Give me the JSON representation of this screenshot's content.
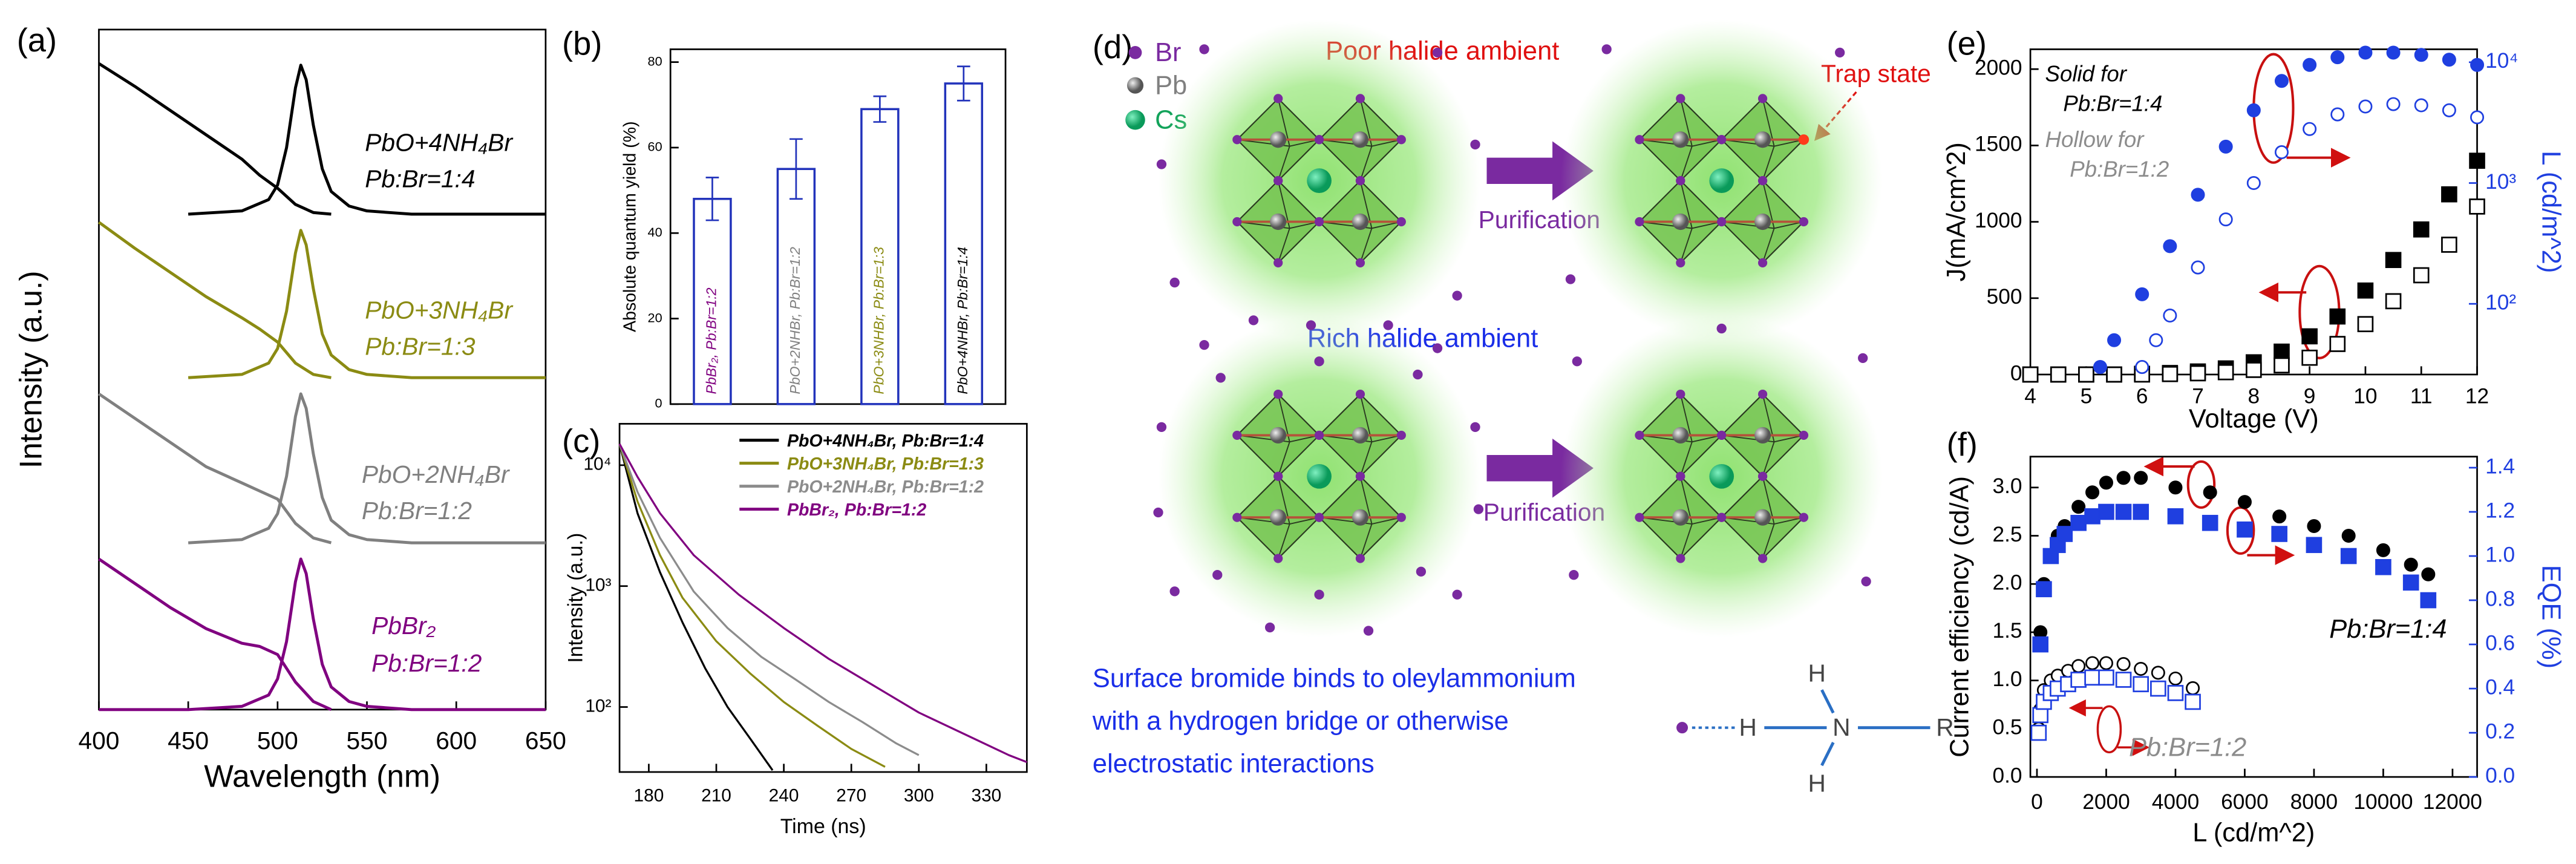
{
  "chart_data": [
    {
      "type": "line",
      "title": "(a)",
      "xlabel": "Wavelength (nm)",
      "ylabel": "Intensity (a.u.)",
      "xlim": [
        400,
        650
      ],
      "xticks": [
        400,
        450,
        500,
        550,
        600,
        650
      ],
      "ylim": [
        0,
        4.2
      ],
      "series": [
        {
          "color": "#000000",
          "x": [
            400,
            420,
            440,
            460,
            480,
            490,
            500,
            510,
            520,
            530
          ],
          "values": [
            3.99,
            3.85,
            3.7,
            3.55,
            3.4,
            3.3,
            3.22,
            3.12,
            3.07,
            3.06
          ]
        },
        {
          "color": "#000000",
          "x": [
            450,
            480,
            495,
            500,
            505,
            510,
            513,
            516,
            520,
            525,
            530,
            540,
            550,
            575,
            600,
            650
          ],
          "values": [
            3.06,
            3.08,
            3.15,
            3.24,
            3.47,
            3.84,
            3.98,
            3.89,
            3.61,
            3.34,
            3.2,
            3.11,
            3.08,
            3.06,
            3.06,
            3.06
          ]
        },
        {
          "color": "#8b8b13",
          "x": [
            400,
            420,
            440,
            460,
            480,
            490,
            500,
            510,
            520,
            530
          ],
          "values": [
            3.01,
            2.85,
            2.7,
            2.55,
            2.42,
            2.35,
            2.27,
            2.14,
            2.07,
            2.05
          ]
        },
        {
          "color": "#8b8b13",
          "x": [
            450,
            480,
            495,
            500,
            505,
            510,
            513,
            516,
            520,
            525,
            530,
            540,
            550,
            575,
            600,
            650
          ],
          "values": [
            2.05,
            2.07,
            2.14,
            2.23,
            2.46,
            2.82,
            2.96,
            2.87,
            2.6,
            2.32,
            2.19,
            2.1,
            2.07,
            2.05,
            2.05,
            2.05
          ]
        },
        {
          "color": "#808080",
          "x": [
            400,
            420,
            440,
            460,
            480,
            490,
            500,
            510,
            520,
            530
          ],
          "values": [
            1.95,
            1.8,
            1.65,
            1.5,
            1.4,
            1.35,
            1.3,
            1.15,
            1.06,
            1.03
          ]
        },
        {
          "color": "#808080",
          "x": [
            450,
            480,
            495,
            500,
            505,
            510,
            513,
            516,
            520,
            525,
            530,
            540,
            550,
            575,
            600,
            650
          ],
          "values": [
            1.03,
            1.05,
            1.12,
            1.21,
            1.44,
            1.81,
            1.95,
            1.86,
            1.58,
            1.31,
            1.17,
            1.08,
            1.05,
            1.03,
            1.03,
            1.03
          ]
        },
        {
          "color": "#800080",
          "x": [
            400,
            420,
            440,
            460,
            480,
            490,
            500,
            510,
            520,
            530
          ],
          "values": [
            0.93,
            0.78,
            0.63,
            0.5,
            0.41,
            0.39,
            0.34,
            0.17,
            0.05,
            0
          ]
        },
        {
          "color": "#800080",
          "x": [
            400,
            450,
            480,
            495,
            500,
            505,
            510,
            513,
            516,
            520,
            525,
            530,
            540,
            550,
            575,
            600,
            650
          ],
          "values": [
            0,
            0,
            0.02,
            0.09,
            0.19,
            0.42,
            0.79,
            0.93,
            0.84,
            0.56,
            0.28,
            0.14,
            0.05,
            0.02,
            0,
            0,
            0
          ]
        }
      ],
      "annotations": [
        {
          "text": "PbO+4NH₄Br",
          "color": "#000000"
        },
        {
          "text": "Pb:Br=1:4",
          "color": "#000000"
        },
        {
          "text": "PbO+3NH₄Br",
          "color": "#8b8b13"
        },
        {
          "text": "Pb:Br=1:3",
          "color": "#8b8b13"
        },
        {
          "text": "PbO+2NH₄Br",
          "color": "#808080"
        },
        {
          "text": "Pb:Br=1:2",
          "color": "#808080"
        },
        {
          "text": "PbBr₂",
          "color": "#800080"
        },
        {
          "text": "Pb:Br=1:2",
          "color": "#800080"
        }
      ]
    },
    {
      "type": "bar",
      "title": "(b)",
      "ylabel": "Absolute quantum yield (%)",
      "categories": [
        "PbBr₂, Pb:Br=1:2",
        "PbO+2NHBr, Pb:Br=1:2",
        "PbO+3NHBr, Pb:Br=1:3",
        "PbO+4NHBr, Pb:Br=1:4"
      ],
      "category_colors": [
        "#800080",
        "#808080",
        "#8b8b13",
        "#000000"
      ],
      "values": [
        48,
        55,
        69,
        75
      ],
      "errors": [
        5,
        7,
        3,
        4
      ],
      "color": "#ffffff",
      "edgecolor": "#2233bb",
      "ylim": [
        0,
        83
      ],
      "yticks": [
        0,
        20,
        40,
        60,
        80
      ]
    },
    {
      "type": "line",
      "title": "(c)",
      "xlabel": "Time (ns)",
      "ylabel": "Intensity (a.u.)",
      "xlim": [
        167,
        348
      ],
      "xticks": [
        180,
        210,
        240,
        270,
        300,
        330
      ],
      "ylog": true,
      "ylim": [
        29,
        22000
      ],
      "yticks": [
        {
          "value": 100,
          "label": "10²"
        },
        {
          "value": 1000,
          "label": "10³"
        },
        {
          "value": 10000,
          "label": "10⁴"
        }
      ],
      "legend": "upper right",
      "series": [
        {
          "name": "PbO+4NH₄Br, Pb:Br=1:4",
          "color": "#000000",
          "x": [
            167,
            175,
            185,
            195,
            205,
            215,
            225,
            235
          ],
          "values": [
            15000,
            4000,
            1300,
            500,
            210,
            100,
            55,
            30
          ]
        },
        {
          "name": "PbO+3NH₄Br, Pb:Br=1:3",
          "color": "#8b8b13",
          "x": [
            167,
            175,
            185,
            195,
            210,
            225,
            240,
            255,
            270,
            285
          ],
          "values": [
            15000,
            5000,
            1800,
            800,
            350,
            190,
            110,
            70,
            45,
            32
          ]
        },
        {
          "name": "PbO+2NH₄Br, Pb:Br=1:2",
          "color": "#8c8c8c",
          "x": [
            167,
            175,
            185,
            200,
            215,
            230,
            245,
            260,
            275,
            290,
            300
          ],
          "values": [
            15000,
            6000,
            2500,
            900,
            450,
            260,
            170,
            110,
            75,
            50,
            40
          ]
        },
        {
          "name": "PbBr₂, Pb:Br=1:2",
          "color": "#800080",
          "x": [
            167,
            175,
            185,
            200,
            220,
            240,
            260,
            280,
            300,
            320,
            340,
            348
          ],
          "values": [
            15000,
            8000,
            4000,
            1800,
            850,
            450,
            250,
            150,
            90,
            60,
            40,
            35
          ]
        }
      ]
    },
    {
      "type": "scatter",
      "title": "(e)",
      "xlabel": "Voltage (V)",
      "ylabel": "J(mA/cm^2)",
      "y2label": "L (cd/m^2)",
      "xlim": [
        4,
        12
      ],
      "xticks": [
        4,
        5,
        6,
        7,
        8,
        9,
        10,
        11,
        12
      ],
      "ylim": [
        0,
        2130
      ],
      "yticks": [
        0,
        500,
        1000,
        1500,
        2000
      ],
      "y2log": true,
      "y2lim": [
        26,
        12800
      ],
      "y2ticks": [
        {
          "value": 100,
          "label": "10²"
        },
        {
          "value": 1000,
          "label": "10³"
        },
        {
          "value": 10000,
          "label": "10⁴"
        }
      ],
      "y2color": "#1f3fe0",
      "series": [
        {
          "color": "#000000",
          "marker": "square",
          "filled": true,
          "x": [
            4,
            4.5,
            5,
            5.5,
            6,
            6.5,
            7,
            7.5,
            8,
            8.5,
            9,
            9.5,
            10,
            10.5,
            11,
            11.5,
            12
          ],
          "values": [
            0,
            0,
            0,
            0,
            5,
            10,
            20,
            40,
            80,
            150,
            250,
            380,
            550,
            750,
            950,
            1180,
            1400
          ]
        },
        {
          "color": "#000000",
          "marker": "square",
          "filled": false,
          "x": [
            4,
            4.5,
            5,
            5.5,
            6,
            6.5,
            7,
            7.5,
            8,
            8.5,
            9,
            9.5,
            10,
            10.5,
            11,
            11.5,
            12
          ],
          "values": [
            0,
            0,
            0,
            0,
            0,
            3,
            8,
            15,
            30,
            60,
            110,
            200,
            330,
            480,
            650,
            850,
            1100
          ]
        },
        {
          "color": "#1f3fe0",
          "marker": "circle",
          "filled": true,
          "axis": "y2",
          "x": [
            5.25,
            5.5,
            6,
            6.5,
            7,
            7.5,
            8,
            8.5,
            9,
            9.5,
            10,
            10.5,
            11,
            11.5,
            12
          ],
          "values": [
            30,
            50,
            120,
            300,
            800,
            2000,
            4000,
            7000,
            9500,
            11000,
            12000,
            12000,
            11500,
            10500,
            9500
          ]
        },
        {
          "color": "#1f3fe0",
          "marker": "circle",
          "filled": false,
          "axis": "y2",
          "x": [
            6,
            6.25,
            6.5,
            7,
            7.5,
            8,
            8.5,
            9,
            9.5,
            10,
            10.5,
            11,
            11.5,
            12
          ],
          "values": [
            30,
            50,
            80,
            200,
            500,
            1000,
            1800,
            2800,
            3700,
            4300,
            4500,
            4400,
            4000,
            3500
          ]
        }
      ],
      "annotations": [
        {
          "text": "Solid for",
          "color": "#000000"
        },
        {
          "text": "Pb:Br=1:4",
          "color": "#000000"
        },
        {
          "text": "Hollow for",
          "color": "#8c8c8c"
        },
        {
          "text": "Pb:Br=1:2",
          "color": "#8c8c8c"
        }
      ]
    },
    {
      "type": "scatter",
      "title": "(f)",
      "xlabel": "L (cd/m^2)",
      "ylabel": "Current efficiency (cd/A)",
      "y2label": "EQE (%)",
      "xlim": [
        -190,
        12710
      ],
      "xticks": [
        0,
        2000,
        4000,
        6000,
        8000,
        10000,
        12000
      ],
      "ylim": [
        0,
        3.32
      ],
      "yticks": [
        {
          "value": 0,
          "label": "0.0"
        },
        0.5,
        {
          "value": 1,
          "label": "1.0"
        },
        1.5,
        {
          "value": 2,
          "label": "2.0"
        },
        2.5,
        {
          "value": 3,
          "label": "3.0"
        }
      ],
      "y2lim": [
        0,
        1.45
      ],
      "y2ticks": [
        {
          "value": 0,
          "label": "0.0"
        },
        0.2,
        0.4,
        0.6,
        0.8,
        {
          "value": 1,
          "label": "1.0"
        },
        1.2,
        1.4
      ],
      "y2color": "#1f3fe0",
      "series": [
        {
          "color": "#000000",
          "marker": "circle",
          "filled": true,
          "x": [
            100,
            200,
            400,
            600,
            800,
            1200,
            1600,
            2000,
            2500,
            3000,
            4000,
            5000,
            6000,
            7000,
            8000,
            9000,
            10000,
            10800,
            11300
          ],
          "values": [
            1.5,
            2.0,
            2.3,
            2.5,
            2.6,
            2.8,
            2.95,
            3.05,
            3.1,
            3.1,
            3.0,
            2.95,
            2.85,
            2.7,
            2.6,
            2.5,
            2.35,
            2.2,
            2.1
          ]
        },
        {
          "color": "#1f3fe0",
          "marker": "square",
          "filled": true,
          "axis": "y2",
          "x": [
            100,
            200,
            400,
            600,
            800,
            1200,
            1600,
            2000,
            2500,
            3000,
            4000,
            5000,
            6000,
            7000,
            8000,
            9000,
            10000,
            10800,
            11300
          ],
          "values": [
            0.6,
            0.85,
            1.0,
            1.05,
            1.1,
            1.15,
            1.18,
            1.2,
            1.2,
            1.2,
            1.18,
            1.15,
            1.12,
            1.1,
            1.05,
            1.0,
            0.95,
            0.88,
            0.8
          ]
        },
        {
          "color": "#000000",
          "marker": "circle",
          "filled": false,
          "x": [
            50,
            100,
            200,
            400,
            600,
            900,
            1200,
            1600,
            2000,
            2500,
            3000,
            3500,
            4000,
            4500
          ],
          "values": [
            0.5,
            0.7,
            0.9,
            1.0,
            1.05,
            1.1,
            1.15,
            1.18,
            1.18,
            1.17,
            1.12,
            1.08,
            1.02,
            0.92
          ]
        },
        {
          "color": "#1f3fe0",
          "marker": "square",
          "filled": false,
          "axis": "y2",
          "x": [
            50,
            100,
            200,
            400,
            600,
            900,
            1200,
            1600,
            2000,
            2500,
            3000,
            3500,
            4000,
            4500
          ],
          "values": [
            0.2,
            0.28,
            0.34,
            0.38,
            0.4,
            0.42,
            0.44,
            0.45,
            0.45,
            0.44,
            0.42,
            0.4,
            0.38,
            0.34
          ]
        }
      ],
      "annotations": [
        {
          "text": "Pb:Br=1:4",
          "color": "#000000"
        },
        {
          "text": "Pb:Br=1:2",
          "color": "#8c8c8c"
        }
      ]
    }
  ],
  "diagram": {
    "title": "(d)",
    "legend": [
      "Br",
      "Pb",
      "Cs"
    ],
    "poor": "Poor halide ambient",
    "trap": "Trap state",
    "rich": "Rich halide ambient",
    "arrows": [
      "Purification",
      "Purification"
    ],
    "note": [
      "Surface bromide binds to oleylammonium",
      "with a hydrogen bridge or otherwise",
      "electrostatic interactions"
    ],
    "molecule": [
      "H",
      "H",
      "N",
      "H",
      "R"
    ]
  }
}
